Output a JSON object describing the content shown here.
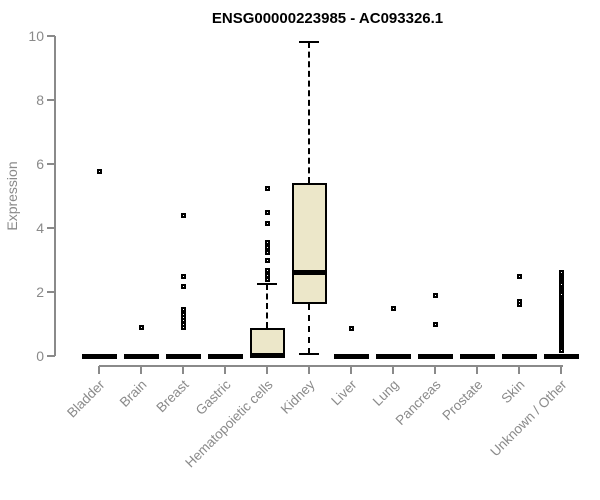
{
  "chart_data": {
    "type": "boxplot",
    "title": "ENSG00000223985 - AC093326.1",
    "ylabel": "Expression",
    "xlabel": "",
    "ylim": [
      0,
      10
    ],
    "yticks": [
      0,
      2,
      4,
      6,
      8,
      10
    ],
    "grid": false,
    "legend_position": "none",
    "categories": [
      "Bladder",
      "Brain",
      "Breast",
      "Gastric",
      "Hematopoietic cells",
      "Kidney",
      "Liver",
      "Lung",
      "Pancreas",
      "Prostate",
      "Skin",
      "Unknown / Other"
    ],
    "boxes": [
      {
        "category": "Bladder",
        "q1": 0,
        "median": 0,
        "q3": 0,
        "whisker_low": 0,
        "whisker_high": 0,
        "outliers": [
          5.78
        ]
      },
      {
        "category": "Brain",
        "q1": 0,
        "median": 0,
        "q3": 0,
        "whisker_low": 0,
        "whisker_high": 0,
        "outliers": [
          0.9
        ]
      },
      {
        "category": "Breast",
        "q1": 0,
        "median": 0,
        "q3": 0,
        "whisker_low": 0,
        "whisker_high": 0,
        "outliers": [
          4.38,
          2.47,
          2.17,
          1.45,
          1.3,
          1.2,
          1.1,
          1.0,
          0.9
        ]
      },
      {
        "category": "Gastric",
        "q1": 0,
        "median": 0,
        "q3": 0,
        "whisker_low": 0,
        "whisker_high": 0,
        "outliers": []
      },
      {
        "category": "Hematopoietic cells",
        "q1": 0,
        "median": 0.03,
        "q3": 0.88,
        "whisker_low": 0,
        "whisker_high": 2.25,
        "outliers": [
          2.4,
          2.53,
          2.66,
          2.97,
          3.23,
          3.38,
          3.54,
          4.13,
          4.5,
          5.25
        ]
      },
      {
        "category": "Kidney",
        "q1": 1.63,
        "median": 2.6,
        "q3": 5.42,
        "whisker_low": 0.06,
        "whisker_high": 9.8,
        "outliers": []
      },
      {
        "category": "Liver",
        "q1": 0,
        "median": 0,
        "q3": 0,
        "whisker_low": 0,
        "whisker_high": 0,
        "outliers": [
          0.85
        ]
      },
      {
        "category": "Lung",
        "q1": 0,
        "median": 0,
        "q3": 0,
        "whisker_low": 0,
        "whisker_high": 0,
        "outliers": [
          1.5
        ]
      },
      {
        "category": "Pancreas",
        "q1": 0,
        "median": 0,
        "q3": 0,
        "whisker_low": 0,
        "whisker_high": 0,
        "outliers": [
          1.9,
          1.0
        ]
      },
      {
        "category": "Prostate",
        "q1": 0,
        "median": 0,
        "q3": 0,
        "whisker_low": 0,
        "whisker_high": 0,
        "outliers": []
      },
      {
        "category": "Skin",
        "q1": 0,
        "median": 0,
        "q3": 0,
        "whisker_low": 0,
        "whisker_high": 0,
        "outliers": [
          2.5,
          1.7,
          1.62
        ]
      },
      {
        "category": "Unknown / Other",
        "q1": 0,
        "median": 0,
        "q3": 0,
        "whisker_low": 0,
        "whisker_high": 0,
        "outliers": [
          2.62,
          2.52,
          2.46,
          2.4,
          2.34,
          2.28,
          2.22,
          2.1,
          2.04,
          1.98,
          1.92,
          1.8,
          1.74,
          1.68,
          1.62,
          1.56,
          1.5,
          1.44,
          1.38,
          1.32,
          1.26,
          1.2,
          1.14,
          1.08,
          1.02,
          0.96,
          0.9,
          0.84,
          0.78,
          0.72,
          0.66,
          0.6,
          0.54,
          0.48,
          0.42,
          0.36,
          0.3,
          0.24,
          0.18
        ]
      }
    ],
    "colors": {
      "box_fill": "#ECE7C9",
      "box_border": "#000000",
      "median": "#000000",
      "whisker": "#000000",
      "outlier": "#000000",
      "axis": "#8a8a8a",
      "tick_label": "#8a8a8a",
      "title": "#000000"
    }
  }
}
